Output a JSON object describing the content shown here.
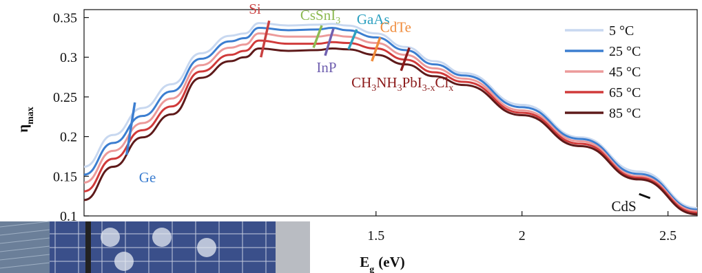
{
  "chart_data": {
    "type": "line",
    "xlabel": "E",
    "xlabel_sub": "g",
    "xlabel_unit": "(eV)",
    "ylabel": "η",
    "ylabel_sub": "max",
    "xlim": [
      0.5,
      2.6
    ],
    "ylim": [
      0.1,
      0.36
    ],
    "xticks": [
      1.5,
      2,
      2.5
    ],
    "xtick_labels": [
      "1.5",
      "2",
      "2.5"
    ],
    "yticks": [
      0.1,
      0.15,
      0.2,
      0.25,
      0.3,
      0.35
    ],
    "ytick_labels": [
      "0.1",
      "0.15",
      "0.2",
      "0.25",
      "0.3",
      "0.35"
    ],
    "grid": false,
    "legend_position": "top-right",
    "series": [
      {
        "name": "5 °C",
        "color": "#c8d8f0",
        "x": [
          0.5,
          0.6,
          0.7,
          0.8,
          0.9,
          1.0,
          1.05,
          1.1,
          1.2,
          1.3,
          1.35,
          1.4,
          1.5,
          1.6,
          1.7,
          1.8,
          2.0,
          2.2,
          2.4,
          2.6
        ],
        "values": [
          0.162,
          0.202,
          0.236,
          0.266,
          0.305,
          0.327,
          0.33,
          0.343,
          0.34,
          0.341,
          0.342,
          0.34,
          0.33,
          0.313,
          0.295,
          0.28,
          0.24,
          0.199,
          0.156,
          0.11
        ]
      },
      {
        "name": "25 °C",
        "color": "#3c7ed0",
        "x": [
          0.5,
          0.6,
          0.7,
          0.8,
          0.9,
          1.0,
          1.05,
          1.1,
          1.2,
          1.3,
          1.35,
          1.4,
          1.5,
          1.6,
          1.7,
          1.8,
          2.0,
          2.2,
          2.4,
          2.6
        ],
        "values": [
          0.152,
          0.192,
          0.226,
          0.257,
          0.298,
          0.32,
          0.324,
          0.337,
          0.334,
          0.335,
          0.337,
          0.334,
          0.325,
          0.309,
          0.291,
          0.277,
          0.237,
          0.197,
          0.153,
          0.108
        ]
      },
      {
        "name": "45 °C",
        "color": "#ec9a9a",
        "x": [
          0.5,
          0.6,
          0.7,
          0.8,
          0.9,
          1.0,
          1.05,
          1.1,
          1.2,
          1.3,
          1.35,
          1.4,
          1.5,
          1.6,
          1.7,
          1.8,
          2.0,
          2.2,
          2.4,
          2.6
        ],
        "values": [
          0.142,
          0.182,
          0.217,
          0.248,
          0.29,
          0.312,
          0.316,
          0.33,
          0.326,
          0.326,
          0.328,
          0.326,
          0.318,
          0.303,
          0.286,
          0.273,
          0.233,
          0.194,
          0.15,
          0.106
        ]
      },
      {
        "name": "65 °C",
        "color": "#d03a3a",
        "x": [
          0.5,
          0.6,
          0.7,
          0.8,
          0.9,
          1.0,
          1.05,
          1.1,
          1.2,
          1.3,
          1.35,
          1.4,
          1.5,
          1.6,
          1.7,
          1.8,
          2.0,
          2.2,
          2.4,
          2.6
        ],
        "values": [
          0.131,
          0.172,
          0.208,
          0.238,
          0.282,
          0.303,
          0.308,
          0.321,
          0.317,
          0.317,
          0.319,
          0.318,
          0.311,
          0.297,
          0.281,
          0.269,
          0.23,
          0.191,
          0.148,
          0.104
        ]
      },
      {
        "name": "85 °C",
        "color": "#5e1a1a",
        "x": [
          0.5,
          0.6,
          0.7,
          0.8,
          0.9,
          1.0,
          1.05,
          1.1,
          1.2,
          1.3,
          1.35,
          1.4,
          1.5,
          1.6,
          1.7,
          1.8,
          2.0,
          2.2,
          2.4,
          2.6
        ],
        "values": [
          0.12,
          0.162,
          0.199,
          0.228,
          0.274,
          0.295,
          0.3,
          0.311,
          0.308,
          0.309,
          0.311,
          0.31,
          0.303,
          0.291,
          0.276,
          0.265,
          0.227,
          0.188,
          0.146,
          0.102
        ]
      }
    ],
    "materials": [
      {
        "label": "Ge",
        "color": "#3c7ed0",
        "bandgap": 0.66,
        "y_top": 0.243,
        "y_bottom": 0.177,
        "anchor": "below-right"
      },
      {
        "label": "Si",
        "color": "#c94040",
        "bandgap": 1.12,
        "y_top": 0.346,
        "y_bottom": 0.3,
        "anchor": "above-left"
      },
      {
        "label": "InP",
        "color": "#7060b0",
        "bandgap": 1.34,
        "y_top": 0.336,
        "y_bottom": 0.302,
        "anchor": "below"
      },
      {
        "label": "CsSnI",
        "sub": "3",
        "color": "#8dba52",
        "bandgap": 1.3,
        "y_top": 0.34,
        "y_bottom": 0.312,
        "anchor": "above"
      },
      {
        "label": "GaAs",
        "color": "#2ca0c0",
        "bandgap": 1.42,
        "y_top": 0.335,
        "y_bottom": 0.31,
        "anchor": "above-right"
      },
      {
        "label": "CdTe",
        "color": "#f08c3c",
        "bandgap": 1.5,
        "y_top": 0.325,
        "y_bottom": 0.295,
        "anchor": "above-right"
      },
      {
        "label_parts": [
          [
            "CH",
            ""
          ],
          [
            "3",
            "sub"
          ],
          [
            "NH",
            ""
          ],
          [
            "3",
            "sub"
          ],
          [
            "PbI",
            ""
          ],
          [
            "3-x",
            "sub"
          ],
          [
            "Cl",
            ""
          ],
          [
            "x",
            "sub"
          ]
        ],
        "color": "#8b1a1a",
        "bandgap": 1.6,
        "y_top": 0.312,
        "y_bottom": 0.283,
        "anchor": "below"
      },
      {
        "label": "CdS",
        "color": "#111111",
        "bandgap": 2.42,
        "y_top": 0.125,
        "y_bottom": 0.125,
        "anchor": "left"
      }
    ]
  }
}
